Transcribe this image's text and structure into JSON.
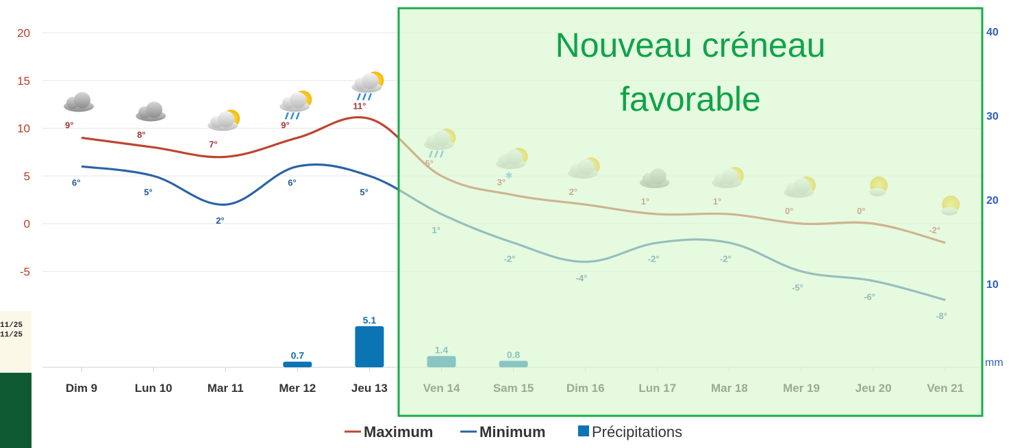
{
  "chart_data": {
    "type": "line",
    "categories": [
      "Dim 9",
      "Lun 10",
      "Mar 11",
      "Mer 12",
      "Jeu 13",
      "Ven 14",
      "Sam 15",
      "Dim 16",
      "Lun 17",
      "Mar 18",
      "Mer 19",
      "Jeu 20",
      "Ven 21"
    ],
    "series": [
      {
        "name": "Maximum",
        "values": [
          9,
          8,
          7,
          9,
          11,
          5,
          3,
          2,
          1,
          1,
          0,
          0,
          -2
        ],
        "color": "#c0442e"
      },
      {
        "name": "Minimum",
        "values": [
          6,
          5,
          2,
          6,
          5,
          1,
          -2,
          -4,
          -2,
          -2,
          -5,
          -6,
          -8
        ],
        "color": "#2b63a6"
      },
      {
        "name": "Précipitations",
        "type": "bar",
        "axis": "right",
        "values": [
          null,
          null,
          null,
          0.7,
          5.1,
          1.4,
          0.8,
          null,
          null,
          null,
          null,
          null,
          null
        ],
        "labels": [
          "",
          "",
          "",
          "0.7",
          "5.1",
          "1.4",
          "0.8",
          "",
          "",
          "",
          "",
          "",
          ""
        ],
        "color": "#0b74b5"
      }
    ],
    "max_labels": [
      "9°",
      "8°",
      "7°",
      "9°",
      "11°",
      "5°",
      "3°",
      "2°",
      "1°",
      "1°",
      "0°",
      "0°",
      "-2°"
    ],
    "min_labels": [
      "6°",
      "5°",
      "2°",
      "6°",
      "5°",
      "1°",
      "-2°",
      "-4°",
      "-2°",
      "-2°",
      "-5°",
      "-6°",
      "-8°"
    ],
    "icons": [
      "cloud-icon",
      "cloud-icon",
      "sun-cloud-icon",
      "sun-rain-icon",
      "sun-rain-icon",
      "sun-rain-icon",
      "sun-snow-icon",
      "sun-cloud-icon",
      "cloud-icon",
      "sun-cloud-icon",
      "sun-cloud-icon",
      "sun-icon",
      "sun-icon"
    ],
    "y_left": {
      "ticks": [
        "20",
        "15",
        "10",
        "5",
        "0",
        "-5"
      ],
      "values": [
        20,
        15,
        10,
        5,
        0,
        -5
      ],
      "ylim": [
        -15,
        20
      ]
    },
    "y_right": {
      "ticks": [
        "40",
        "30",
        "20",
        "10"
      ],
      "values": [
        40,
        30,
        20,
        10
      ],
      "unit": "mm"
    },
    "grid": true,
    "legend": {
      "position": "bottom",
      "items": [
        "Maximum",
        "Minimum",
        "Précipitations"
      ]
    }
  },
  "overlay": {
    "line1": "Nouveau  créneau",
    "line2": "favorable",
    "color": "#0fa34a"
  },
  "sidecard": {
    "date1": "11/25",
    "date2": "11/25"
  }
}
